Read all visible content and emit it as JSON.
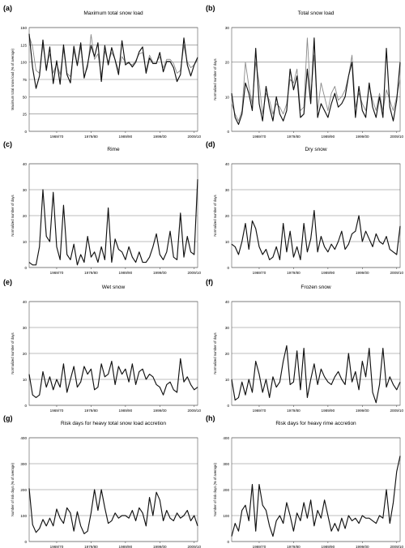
{
  "figure": {
    "x_ticks": [
      "1969/70",
      "1979/80",
      "1989/90",
      "1999/00",
      "2009/10"
    ],
    "x_tick_positions": [
      1969,
      1979,
      1989,
      1999,
      2009
    ],
    "x_range": [
      1961,
      2010
    ],
    "line_color_primary": "#111111",
    "line_color_secondary": "#8a8a8a",
    "grid_color": "#7a7a7a"
  },
  "chart_data": [
    {
      "letter": "(a)",
      "title": "Maximum total snow load",
      "type": "line",
      "ylabel": "Maximum total snow load (% of average)",
      "ylim": [
        0,
        150
      ],
      "yticks": [
        0,
        25,
        50,
        75,
        100,
        125,
        150
      ],
      "grid": true,
      "series": [
        {
          "role": "primary",
          "values": [
            141,
            92,
            62,
            80,
            132,
            88,
            122,
            69,
            102,
            68,
            125,
            82,
            70,
            123,
            95,
            128,
            77,
            97,
            124,
            108,
            128,
            72,
            124,
            96,
            121,
            103,
            82,
            131,
            96,
            100,
            93,
            100,
            115,
            122,
            84,
            106,
            98,
            98,
            114,
            86,
            101,
            101,
            92,
            72,
            82,
            135,
            96,
            80,
            96,
            107
          ]
        },
        {
          "role": "secondary",
          "values": [
            138,
            122,
            88,
            84,
            125,
            92,
            112,
            84,
            98,
            82,
            118,
            84,
            79,
            116,
            96,
            122,
            80,
            92,
            140,
            104,
            112,
            80,
            116,
            100,
            114,
            104,
            88,
            108,
            100,
            98,
            96,
            102,
            112,
            114,
            88,
            110,
            100,
            100,
            108,
            92,
            104,
            104,
            98,
            84,
            88,
            124,
            100,
            92,
            96,
            104
          ]
        }
      ]
    },
    {
      "letter": "(b)",
      "title": "Total snow load",
      "type": "line",
      "ylabel": "Normalized number of days",
      "ylim": [
        0,
        30
      ],
      "yticks": [
        0,
        10,
        20,
        30
      ],
      "grid": true,
      "series": [
        {
          "role": "primary",
          "values": [
            11,
            4,
            2,
            5,
            14,
            11,
            6,
            24,
            8,
            3,
            13,
            7,
            3,
            10,
            5,
            3,
            6,
            18,
            12,
            16,
            4,
            5,
            18,
            8,
            27,
            4,
            8,
            6,
            4,
            8,
            11,
            7,
            8,
            10,
            16,
            20,
            4,
            13,
            6,
            4,
            14,
            7,
            4,
            10,
            4,
            24,
            7,
            3,
            9,
            20
          ]
        },
        {
          "role": "secondary",
          "values": [
            8,
            5,
            3,
            6,
            20,
            13,
            8,
            20,
            14,
            5,
            11,
            9,
            5,
            8,
            7,
            5,
            8,
            15,
            14,
            18,
            6,
            7,
            27,
            10,
            22,
            6,
            14,
            10,
            6,
            11,
            13,
            9,
            10,
            12,
            16,
            22,
            7,
            11,
            8,
            6,
            13,
            9,
            6,
            11,
            6,
            12,
            9,
            6,
            10,
            15
          ]
        }
      ]
    },
    {
      "letter": "(c)",
      "title": "Rime",
      "type": "line",
      "ylabel": "Normalized number of days",
      "ylim": [
        0,
        40
      ],
      "yticks": [
        0,
        10,
        20,
        30,
        40
      ],
      "grid": true,
      "series": [
        {
          "role": "primary",
          "values": [
            2,
            1,
            1,
            8,
            30,
            12,
            10,
            29,
            8,
            3,
            24,
            5,
            3,
            9,
            1,
            5,
            2,
            12,
            4,
            6,
            2,
            8,
            3,
            23,
            2,
            11,
            7,
            6,
            3,
            8,
            4,
            2,
            6,
            2,
            2,
            4,
            8,
            13,
            5,
            3,
            6,
            14,
            4,
            3,
            21,
            4,
            12,
            6,
            5,
            34
          ]
        }
      ]
    },
    {
      "letter": "(d)",
      "title": "Dry snow",
      "type": "line",
      "ylabel": "Normalized number of days",
      "ylim": [
        0,
        40
      ],
      "yticks": [
        0,
        10,
        20,
        30,
        40
      ],
      "grid": true,
      "series": [
        {
          "role": "primary",
          "values": [
            9,
            8,
            5,
            10,
            17,
            7,
            18,
            15,
            8,
            5,
            7,
            3,
            4,
            8,
            3,
            17,
            6,
            14,
            4,
            8,
            3,
            17,
            6,
            11,
            22,
            6,
            12,
            8,
            6,
            9,
            7,
            10,
            14,
            7,
            9,
            13,
            14,
            20,
            10,
            14,
            11,
            8,
            13,
            10,
            9,
            12,
            7,
            6,
            5,
            16
          ]
        }
      ]
    },
    {
      "letter": "(e)",
      "title": "Wet snow",
      "type": "line",
      "ylabel": "Normalized number of days",
      "ylim": [
        0,
        40
      ],
      "yticks": [
        0,
        10,
        20,
        30,
        40
      ],
      "grid": true,
      "series": [
        {
          "role": "primary",
          "values": [
            12,
            4,
            3,
            4,
            13,
            7,
            11,
            6,
            10,
            7,
            16,
            5,
            10,
            15,
            7,
            9,
            15,
            12,
            14,
            6,
            7,
            16,
            11,
            12,
            17,
            8,
            15,
            12,
            14,
            9,
            16,
            8,
            13,
            14,
            10,
            12,
            11,
            8,
            7,
            4,
            8,
            9,
            6,
            5,
            18,
            9,
            11,
            8,
            6,
            7
          ]
        }
      ]
    },
    {
      "letter": "(f)",
      "title": "Frozen snow",
      "type": "line",
      "ylabel": "Normalized number of days",
      "ylim": [
        0,
        40
      ],
      "yticks": [
        0,
        10,
        20,
        30,
        40
      ],
      "grid": true,
      "series": [
        {
          "role": "primary",
          "values": [
            10,
            2,
            3,
            9,
            4,
            10,
            5,
            17,
            12,
            5,
            10,
            3,
            11,
            7,
            9,
            17,
            23,
            8,
            9,
            21,
            6,
            22,
            3,
            10,
            16,
            8,
            14,
            11,
            9,
            8,
            11,
            13,
            10,
            8,
            20,
            9,
            13,
            6,
            17,
            11,
            22,
            5,
            1,
            8,
            22,
            7,
            11,
            8,
            6,
            9
          ]
        }
      ]
    },
    {
      "letter": "(g)",
      "title": "Risk days for heavy total snow load accretion",
      "type": "line",
      "ylabel": "Number of risk days (% of average)",
      "ylim": [
        0,
        400
      ],
      "yticks": [
        0,
        100,
        200,
        300,
        400
      ],
      "grid": true,
      "series": [
        {
          "role": "primary",
          "values": [
            205,
            65,
            35,
            50,
            85,
            60,
            90,
            60,
            125,
            90,
            70,
            130,
            110,
            40,
            115,
            60,
            30,
            40,
            110,
            200,
            120,
            200,
            130,
            70,
            80,
            110,
            90,
            100,
            100,
            90,
            120,
            80,
            130,
            110,
            60,
            170,
            100,
            190,
            160,
            80,
            120,
            90,
            80,
            110,
            90,
            100,
            120,
            80,
            100,
            60
          ]
        }
      ]
    },
    {
      "letter": "(h)",
      "title": "Risk days for heavy rime accretion",
      "type": "line",
      "ylabel": "Number of risk days (% of average)",
      "ylim": [
        0,
        400
      ],
      "yticks": [
        0,
        100,
        200,
        300,
        400
      ],
      "grid": true,
      "series": [
        {
          "role": "primary",
          "values": [
            20,
            70,
            40,
            120,
            140,
            80,
            220,
            40,
            220,
            140,
            120,
            60,
            20,
            80,
            100,
            70,
            150,
            100,
            40,
            110,
            80,
            150,
            90,
            160,
            60,
            120,
            90,
            160,
            100,
            40,
            70,
            40,
            90,
            50,
            100,
            80,
            90,
            70,
            100,
            90,
            90,
            80,
            70,
            100,
            90,
            200,
            70,
            150,
            270,
            330
          ]
        }
      ]
    }
  ]
}
